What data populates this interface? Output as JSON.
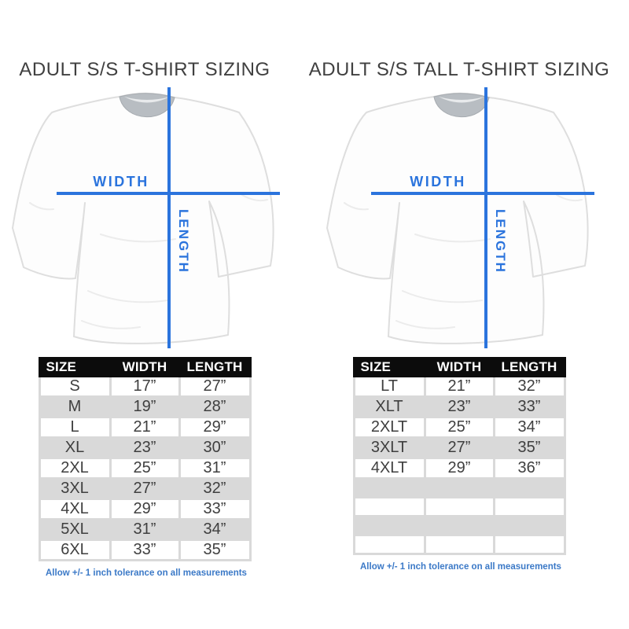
{
  "colors": {
    "measure_blue": "#2b74dd",
    "footnote_blue": "#3b79c7",
    "zebra_gray": "#d9d9d9",
    "header_bg": "#0c0c0c",
    "header_text": "#ffffff",
    "body_text": "#3f3f3f",
    "title_text": "#404040",
    "page_bg": "#ffffff"
  },
  "panels": [
    {
      "title": "ADULT S/S T-SHIRT SIZING",
      "diagram": {
        "width_label": "WIDTH",
        "length_label": "LENGTH"
      },
      "table": {
        "headers": [
          "SIZE",
          "WIDTH",
          "LENGTH"
        ],
        "rows": [
          [
            "S",
            "17”",
            "27”"
          ],
          [
            "M",
            "19”",
            "28”"
          ],
          [
            "L",
            "21”",
            "29”"
          ],
          [
            "XL",
            "23”",
            "30”"
          ],
          [
            "2XL",
            "25”",
            "31”"
          ],
          [
            "3XL",
            "27”",
            "32”"
          ],
          [
            "4XL",
            "29”",
            "33”"
          ],
          [
            "5XL",
            "31”",
            "34”"
          ],
          [
            "6XL",
            "33”",
            "35”"
          ]
        ],
        "empty_rows": 0
      },
      "footnote": "Allow +/- 1 inch tolerance on all measurements"
    },
    {
      "title": "ADULT S/S TALL T-SHIRT SIZING",
      "diagram": {
        "width_label": "WIDTH",
        "length_label": "LENGTH"
      },
      "table": {
        "headers": [
          "SIZE",
          "WIDTH",
          "LENGTH"
        ],
        "rows": [
          [
            "LT",
            "21”",
            "32”"
          ],
          [
            "XLT",
            "23”",
            "33”"
          ],
          [
            "2XLT",
            "25”",
            "34”"
          ],
          [
            "3XLT",
            "27”",
            "35”"
          ],
          [
            "4XLT",
            "29”",
            "36”"
          ]
        ],
        "empty_rows": 4
      },
      "footnote": "Allow +/- 1 inch tolerance on all measurements"
    }
  ]
}
